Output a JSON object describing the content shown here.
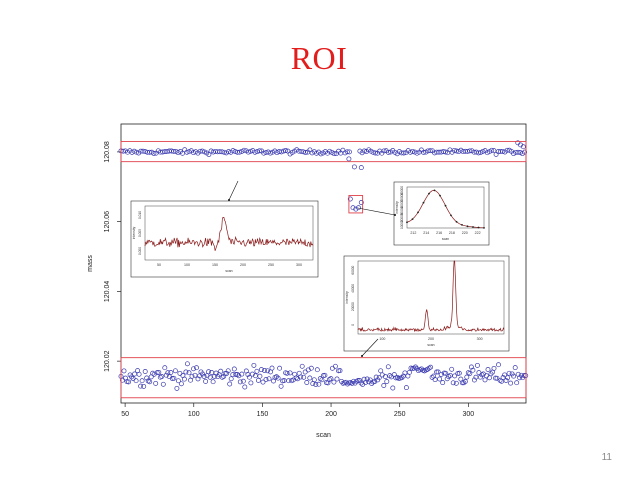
{
  "slide": {
    "title": "ROI",
    "number": "11"
  },
  "colors": {
    "title": "#e31c1c",
    "points": "#3b3bb0",
    "roi_box": "#e0424a",
    "trace": "#8b1a1a"
  },
  "chart_data": {
    "type": "scatter",
    "xlabel": "scan",
    "ylabel": "mass",
    "xlim": [
      47,
      342
    ],
    "ylim": [
      120.008,
      120.088
    ],
    "xticks": [
      50,
      100,
      150,
      200,
      250,
      300
    ],
    "yticks": [
      120.02,
      120.04,
      120.06,
      120.08
    ],
    "ytick_labels": [
      "120.02",
      "120.04",
      "120.06",
      "120.08"
    ],
    "series": [
      {
        "band": "upper",
        "mass_center": 120.08,
        "noise": 0.0004,
        "scan_ranges": [
          [
            47,
            214
          ],
          [
            221,
            342
          ]
        ]
      },
      {
        "band": "lower",
        "mass_center": 120.0158,
        "noise": 0.002,
        "scan_ranges": [
          [
            47,
            342
          ]
        ]
      }
    ],
    "outliers": [
      {
        "scan": 213,
        "mass": 120.078
      },
      {
        "scan": 217,
        "mass": 120.0757
      },
      {
        "scan": 222,
        "mass": 120.0755
      },
      {
        "scan": 336,
        "mass": 120.0826
      },
      {
        "scan": 338,
        "mass": 120.082
      },
      {
        "scan": 340,
        "mass": 120.0815
      },
      {
        "scan": 214,
        "mass": 120.0665
      },
      {
        "scan": 216,
        "mass": 120.064
      },
      {
        "scan": 218,
        "mass": 120.0636
      },
      {
        "scan": 220,
        "mass": 120.064
      },
      {
        "scan": 222,
        "mass": 120.0655
      }
    ],
    "roi_regions": [
      {
        "scan": [
          47,
          342
        ],
        "mass": [
          120.0772,
          120.083
        ]
      },
      {
        "scan": [
          47,
          342
        ],
        "mass": [
          120.0095,
          120.021
        ]
      },
      {
        "scan": [
          213,
          223
        ],
        "mass": [
          120.0625,
          120.0675
        ]
      }
    ],
    "insets": [
      {
        "name": "upper-roi-trace",
        "xlabel": "scan",
        "ylabel": "intensity",
        "xticks": [
          "50",
          "100",
          "150",
          "200",
          "250",
          "300"
        ],
        "yticks": [
          "0.000",
          "0.005",
          "0.010"
        ],
        "profile": "noise-with-peak"
      },
      {
        "name": "small-roi-peak",
        "xlabel": "scan",
        "ylabel": "intensity",
        "xticks": [
          "212",
          "214",
          "216",
          "218",
          "220",
          "222"
        ],
        "yticks": [
          "10000",
          "20000",
          "30000",
          "40000",
          "50000",
          "60000"
        ],
        "profile": "single-peak"
      },
      {
        "name": "lower-roi-trace",
        "xlabel": "scan",
        "ylabel": "intensity",
        "xticks": [
          "100",
          "200",
          "300"
        ],
        "yticks": [
          "0",
          "20000",
          "40000",
          "60000"
        ],
        "profile": "two-peaks"
      }
    ]
  }
}
